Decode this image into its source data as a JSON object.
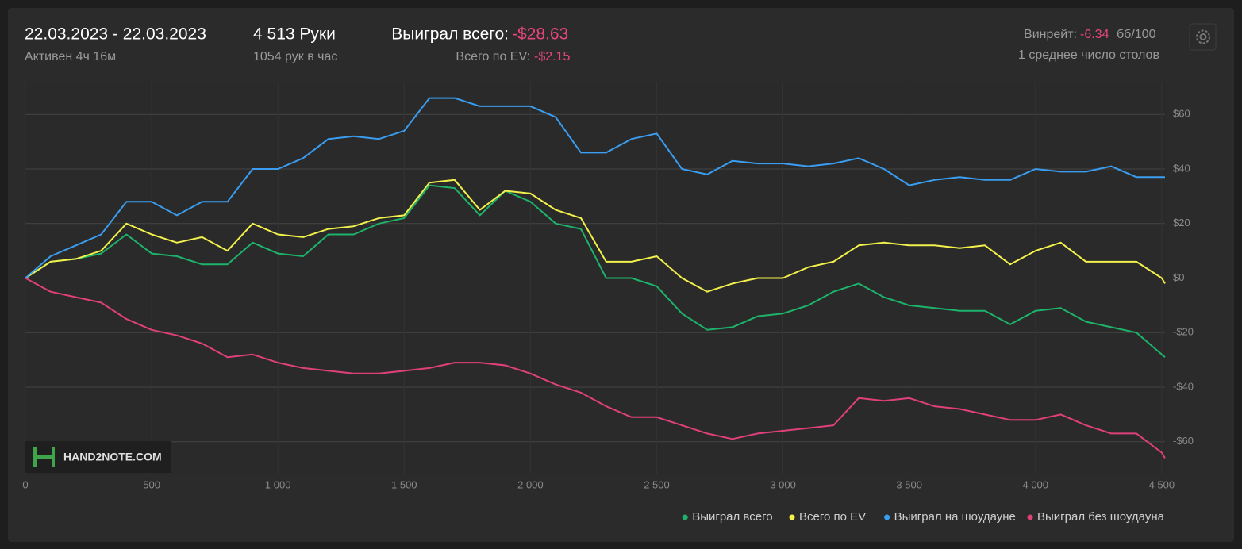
{
  "header": {
    "dates": "22.03.2023 - 22.03.2023",
    "active": "Активен 4ч 16м",
    "hands": "4 513 Руки",
    "hands_per_hour": "1054 рук в час",
    "won_label": "Выиграл всего:",
    "won_value": "-$28.63",
    "ev_label": "Всего по EV:",
    "ev_value": "-$2.15",
    "winrate_label": "Винрейт:",
    "winrate_value": "-6.34",
    "winrate_unit": "бб/100",
    "tables": "1 среднее число столов",
    "logo": "HAND2NOTE.COM"
  },
  "chart_data": {
    "type": "line",
    "x": [
      0,
      100,
      200,
      300,
      400,
      500,
      600,
      700,
      800,
      900,
      1000,
      1100,
      1200,
      1300,
      1400,
      1500,
      1600,
      1700,
      1800,
      1900,
      2000,
      2100,
      2200,
      2300,
      2400,
      2500,
      2600,
      2700,
      2800,
      2900,
      3000,
      3100,
      3200,
      3300,
      3400,
      3500,
      3600,
      3700,
      3800,
      3900,
      4000,
      4100,
      4200,
      4300,
      4400,
      4500,
      4513
    ],
    "series": [
      {
        "name": "Выиграл всего",
        "color": "#1db36b",
        "values": [
          0,
          6,
          7,
          9,
          16,
          9,
          8,
          5,
          5,
          13,
          9,
          8,
          16,
          16,
          20,
          22,
          34,
          33,
          23,
          32,
          28,
          20,
          18,
          0,
          0,
          -3,
          -13,
          -19,
          -18,
          -14,
          -13,
          -10,
          -5,
          -2,
          -7,
          -10,
          -11,
          -12,
          -12,
          -17,
          -12,
          -11,
          -16,
          -18,
          -20,
          -28,
          -29
        ]
      },
      {
        "name": "Всего по EV",
        "color": "#f2f04a",
        "values": [
          0,
          6,
          7,
          10,
          20,
          16,
          13,
          15,
          10,
          20,
          16,
          15,
          18,
          19,
          22,
          23,
          35,
          36,
          25,
          32,
          31,
          25,
          22,
          6,
          6,
          8,
          0,
          -5,
          -2,
          0,
          0,
          4,
          6,
          12,
          13,
          12,
          12,
          11,
          12,
          5,
          10,
          13,
          6,
          6,
          6,
          0,
          -2
        ]
      },
      {
        "name": "Выиграл на шоудауне",
        "color": "#3a9df0",
        "values": [
          0,
          8,
          12,
          16,
          28,
          28,
          23,
          28,
          28,
          40,
          40,
          44,
          51,
          52,
          51,
          54,
          66,
          66,
          63,
          63,
          63,
          59,
          46,
          46,
          51,
          53,
          40,
          38,
          43,
          42,
          42,
          41,
          42,
          44,
          40,
          34,
          36,
          37,
          36,
          36,
          40,
          39,
          39,
          41,
          37,
          37,
          37
        ]
      },
      {
        "name": "Выиграл без шоудауна",
        "color": "#e0407a",
        "values": [
          0,
          -5,
          -7,
          -9,
          -15,
          -19,
          -21,
          -24,
          -29,
          -28,
          -31,
          -33,
          -34,
          -35,
          -35,
          -34,
          -33,
          -31,
          -31,
          -32,
          -35,
          -39,
          -42,
          -47,
          -51,
          -51,
          -54,
          -57,
          -59,
          -57,
          -56,
          -55,
          -54,
          -44,
          -45,
          -44,
          -47,
          -48,
          -50,
          -52,
          -52,
          -50,
          -54,
          -57,
          -57,
          -64,
          -66
        ]
      }
    ],
    "xlim": [
      0,
      4513
    ],
    "xticks": [
      0,
      500,
      {
        "value": 1000,
        "label": "1 000"
      },
      {
        "value": 1500,
        "label": "1 500"
      },
      {
        "value": 2000,
        "label": "2 000"
      },
      {
        "value": 2500,
        "label": "2 500"
      },
      {
        "value": 3000,
        "label": "3 000"
      },
      {
        "value": 3500,
        "label": "3 500"
      },
      {
        "value": 4000,
        "label": "4 000"
      },
      {
        "value": 4500,
        "label": "4 500"
      }
    ],
    "ylim": [
      -72,
      72
    ],
    "yticks": [
      {
        "value": -60,
        "label": "-$60"
      },
      {
        "value": -40,
        "label": "-$40"
      },
      {
        "value": -20,
        "label": "-$20"
      },
      {
        "value": 0,
        "label": "$0"
      },
      {
        "value": 20,
        "label": "$20"
      },
      {
        "value": 40,
        "label": "$40"
      },
      {
        "value": 60,
        "label": "$60"
      }
    ],
    "grid": true,
    "legend": "bottom-right"
  }
}
